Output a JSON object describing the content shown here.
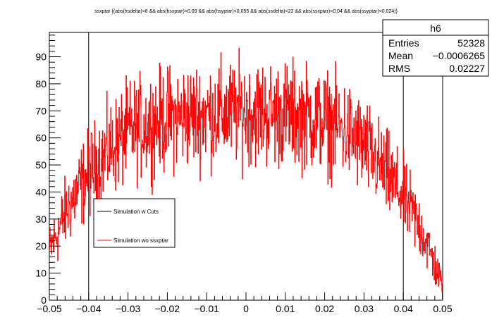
{
  "chart_data": {
    "type": "line",
    "title": "ssxptar {(abs(hsdelta)<8 && abs(hsxptar)<0.09 && abs(hsyptar)<0.055 && abs(ssdelta)<22 && abs(ssxptar)<0.04 && abs(ssyptar)<0.024)}",
    "xlim": [
      -0.05,
      0.05
    ],
    "ylim": [
      0,
      99
    ],
    "x_ticks": [
      -0.05,
      -0.04,
      -0.03,
      -0.02,
      -0.01,
      0,
      0.01,
      0.02,
      0.03,
      0.04,
      0.05
    ],
    "x_tick_labels": [
      "−0.05",
      "−0.04",
      "−0.03",
      "−0.02",
      "−0.01",
      "0",
      "0.01",
      "0.02",
      "0.03",
      "0.04",
      "0.05"
    ],
    "y_ticks": [
      0,
      10,
      20,
      30,
      40,
      50,
      60,
      70,
      80,
      90
    ],
    "y_tick_labels": [
      "0",
      "10",
      "20",
      "30",
      "40",
      "50",
      "60",
      "70",
      "80",
      "90"
    ],
    "grid": false,
    "legend_position": "left-middle",
    "series": [
      {
        "name": "Simulation w Cuts",
        "color": "#000000",
        "style": "step",
        "x": [
          -0.05,
          -0.04,
          -0.04,
          0.04,
          0.04,
          0.05
        ],
        "values": [
          0,
          0,
          99,
          99,
          0,
          0
        ]
      },
      {
        "name": "Simulation wo ssxptar",
        "color": "#ff0000",
        "style": "noisy-histogram",
        "x": [
          -0.05,
          -0.045,
          -0.04,
          -0.035,
          -0.03,
          -0.025,
          -0.02,
          -0.015,
          -0.01,
          -0.005,
          0,
          0.005,
          0.01,
          0.015,
          0.02,
          0.025,
          0.03,
          0.035,
          0.04,
          0.045,
          0.05
        ],
        "values": [
          18,
          35,
          47,
          55,
          62,
          65,
          67,
          68,
          69,
          69,
          70,
          69,
          69,
          68,
          66,
          63,
          57,
          48,
          38,
          25,
          5
        ]
      }
    ]
  },
  "stats_box": {
    "name": "h6",
    "rows": [
      {
        "label": "Entries",
        "value": "52328"
      },
      {
        "label": "Mean",
        "value": "−0.0006265"
      },
      {
        "label": "RMS",
        "value": "0.02227"
      }
    ]
  }
}
